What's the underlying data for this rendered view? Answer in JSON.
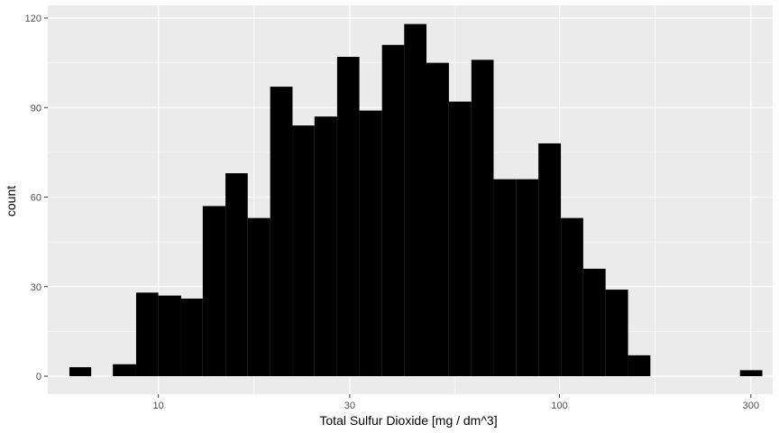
{
  "chart_data": {
    "type": "bar",
    "subtype": "histogram",
    "x_scale": "log10",
    "xlabel": "Total Sulfur Dioxide [mg / dm^3]",
    "ylabel": "count",
    "xlim": [
      5.3,
      340
    ],
    "ylim": [
      0,
      120
    ],
    "x_ticks": [
      {
        "value": 10,
        "label": "10"
      },
      {
        "value": 30,
        "label": "30"
      },
      {
        "value": 100,
        "label": "100"
      },
      {
        "value": 300,
        "label": "300"
      }
    ],
    "y_ticks": [
      {
        "value": 0,
        "label": "0"
      },
      {
        "value": 30,
        "label": "30"
      },
      {
        "value": 60,
        "label": "60"
      },
      {
        "value": 90,
        "label": "90"
      },
      {
        "value": 120,
        "label": "120"
      }
    ],
    "grid": true,
    "bin_edges": [
      6.0,
      6.8,
      7.7,
      8.8,
      10.0,
      11.4,
      12.9,
      14.7,
      16.7,
      19.0,
      21.6,
      24.5,
      27.9,
      31.7,
      36.1,
      41.0,
      46.6,
      53.0,
      60.3,
      68.5,
      77.9,
      88.6,
      100.8,
      114.6,
      130.3,
      148.2,
      168.5,
      191.6,
      217.9,
      247.8,
      281.8,
      320.4
    ],
    "counts": [
      3,
      0,
      4,
      28,
      27,
      26,
      57,
      68,
      53,
      97,
      84,
      87,
      107,
      89,
      111,
      118,
      105,
      92,
      106,
      66,
      66,
      78,
      53,
      36,
      29,
      7,
      0,
      0,
      0,
      0,
      2
    ],
    "bar_color": "#000000",
    "panel_color": "#ebebeb",
    "grid_color": "#ffffff"
  }
}
